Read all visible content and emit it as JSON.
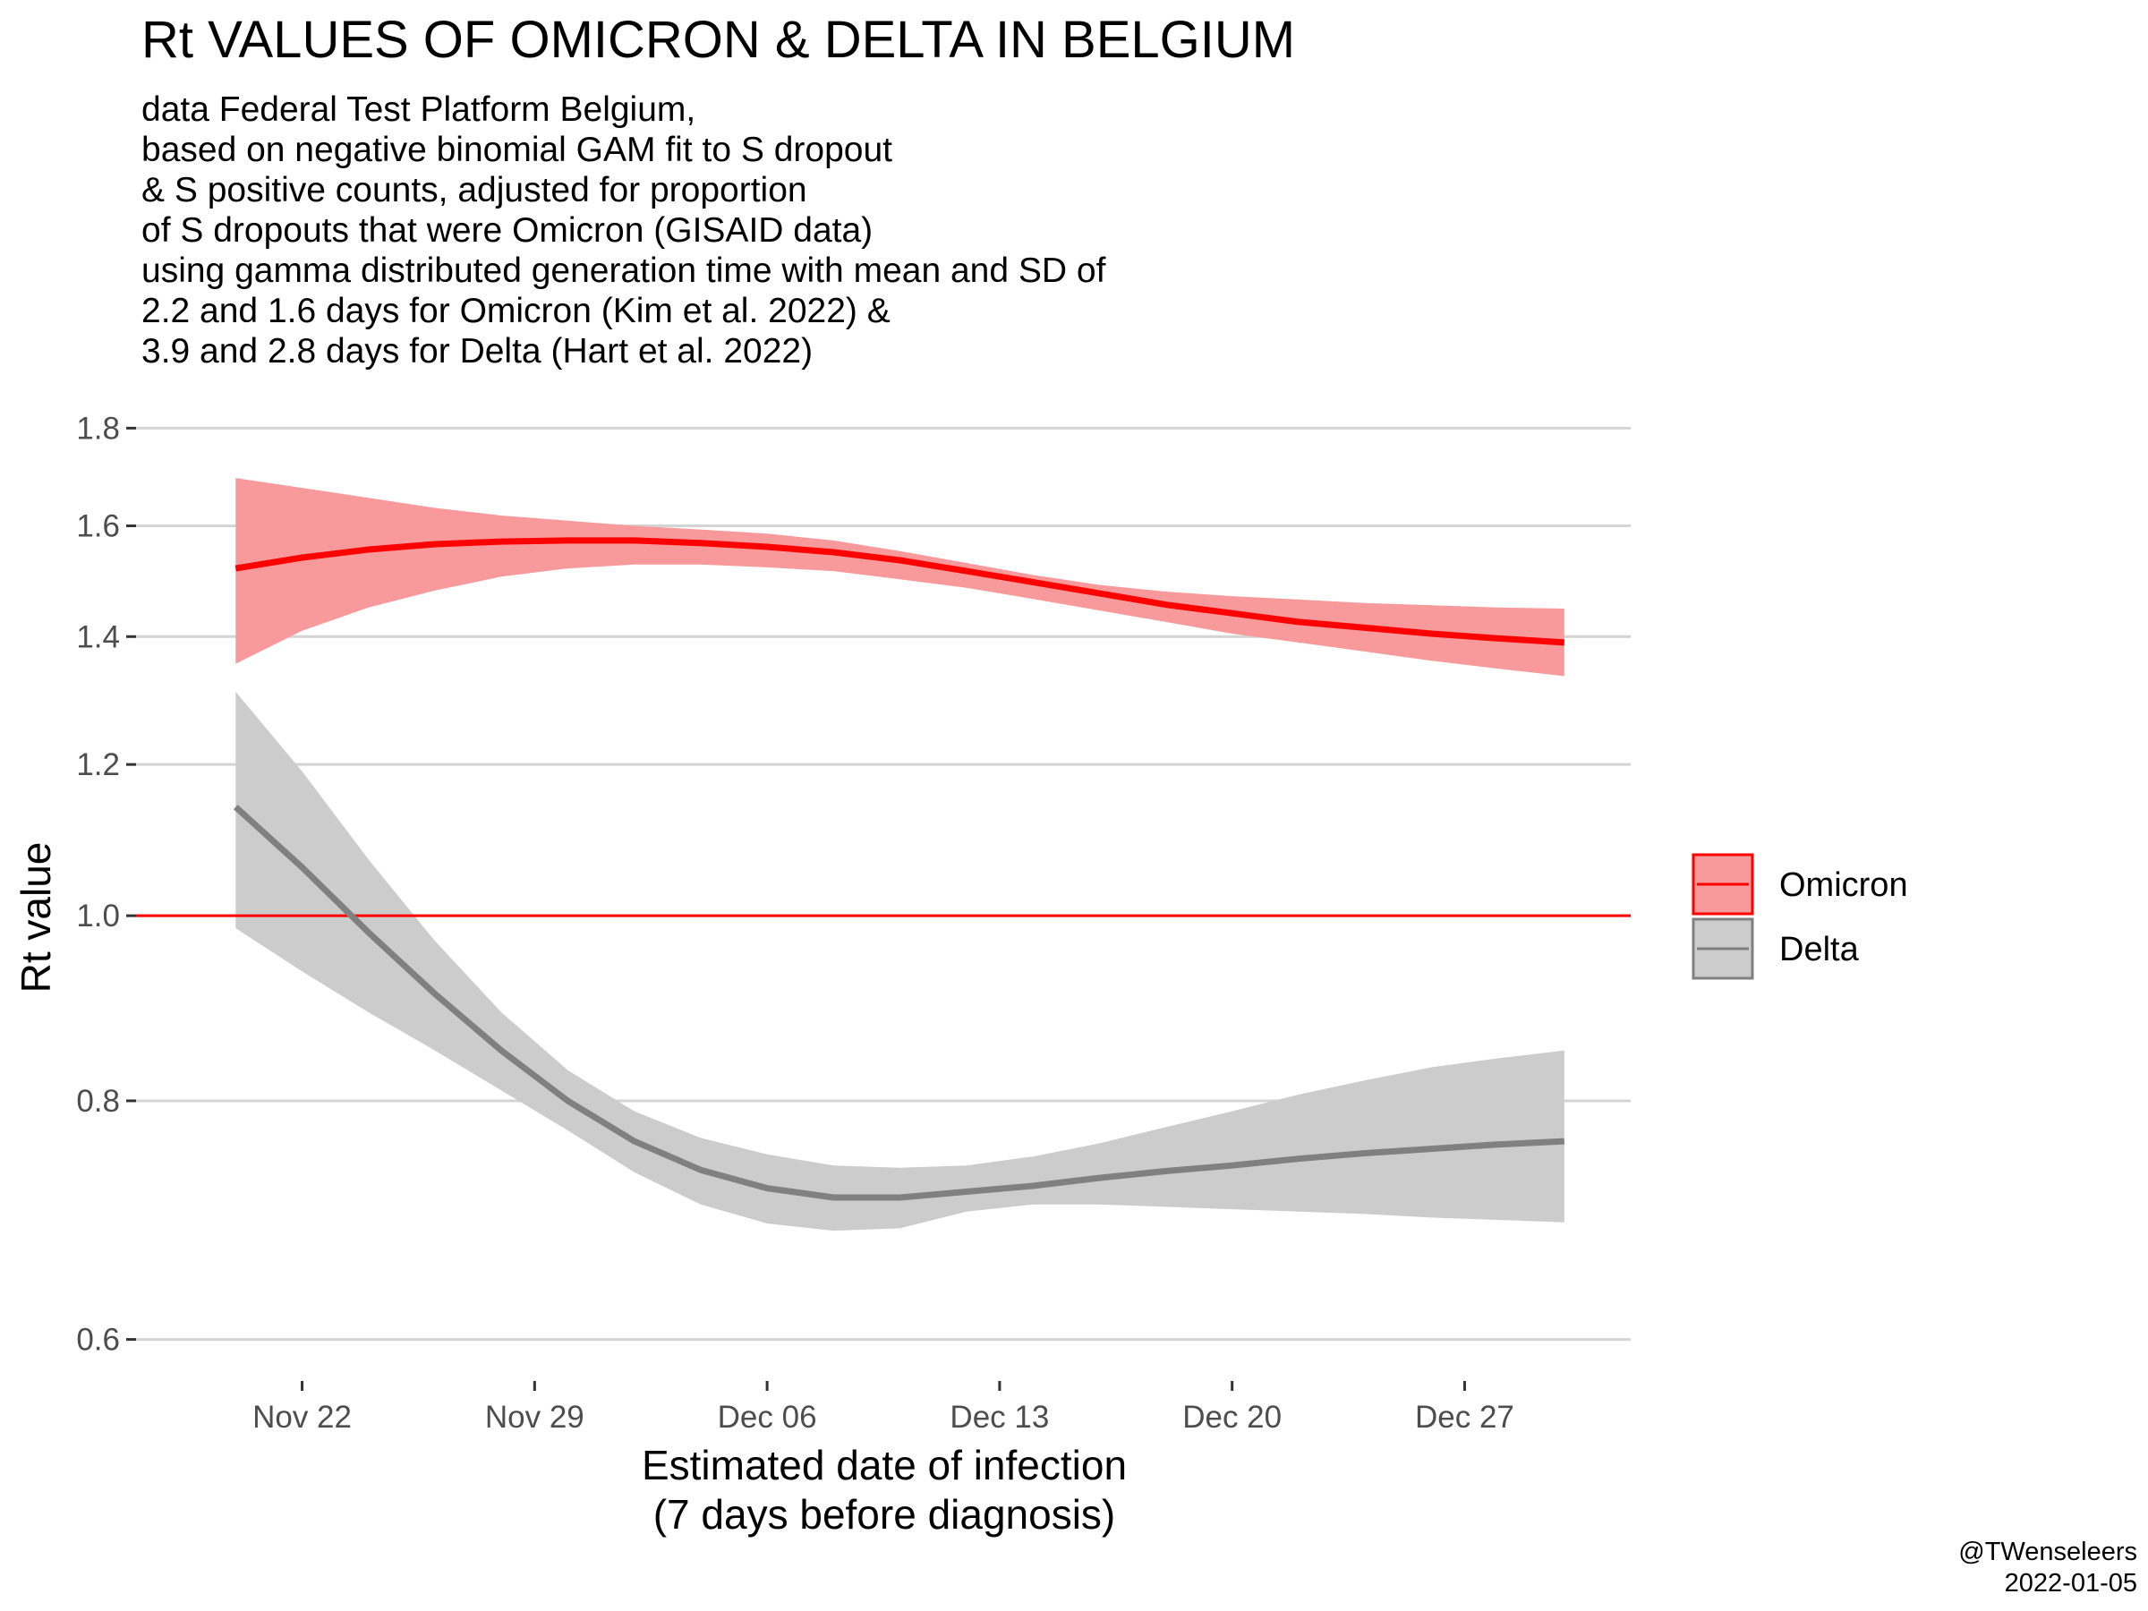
{
  "chart_data": {
    "type": "line",
    "title": "Rt VALUES OF OMICRON & DELTA IN BELGIUM",
    "subtitle_lines": [
      "data Federal Test Platform Belgium,",
      "based on negative binomial GAM fit to S dropout",
      "& S positive counts, adjusted for proportion",
      "of S dropouts that were Omicron (GISAID data)",
      "using gamma distributed generation time with mean and SD of",
      "2.2 and 1.6 days for Omicron (Kim et al. 2022) &",
      "3.9 and 2.8 days for Delta (Hart et al. 2022)"
    ],
    "xlabel_lines": [
      "Estimated date of infection",
      "(7 days before diagnosis)"
    ],
    "ylabel": "Rt value",
    "y_scale": "log",
    "ylim": [
      0.58,
      1.84
    ],
    "xlim": [
      "2021-11-17",
      "2022-01-01"
    ],
    "y_ticks": [
      0.6,
      0.8,
      1.0,
      1.2,
      1.4,
      1.6,
      1.8
    ],
    "y_tick_labels": [
      "0.6",
      "0.8",
      "1.0",
      "1.2",
      "1.4",
      "1.6",
      "1.8"
    ],
    "x_ticks": [
      "2021-11-22",
      "2021-11-29",
      "2021-12-06",
      "2021-12-13",
      "2021-12-20",
      "2021-12-27"
    ],
    "x_tick_labels": [
      "Nov 22",
      "Nov 29",
      "Dec 06",
      "Dec 13",
      "Dec 20",
      "Dec 27"
    ],
    "reference_line": {
      "y": 1.0,
      "color": "#ff0000"
    },
    "grid": "horizontal-major",
    "legend_position": "right",
    "series": [
      {
        "name": "Omicron",
        "line_color": "#ff0000",
        "fill_color": "#f8999b",
        "x": [
          "2021-11-20",
          "2021-11-22",
          "2021-11-24",
          "2021-11-26",
          "2021-11-28",
          "2021-11-30",
          "2021-12-02",
          "2021-12-04",
          "2021-12-06",
          "2021-12-08",
          "2021-12-10",
          "2021-12-12",
          "2021-12-14",
          "2021-12-16",
          "2021-12-18",
          "2021-12-20",
          "2021-12-22",
          "2021-12-24",
          "2021-12-26",
          "2021-12-28",
          "2021-12-30"
        ],
        "y": [
          1.52,
          1.54,
          1.555,
          1.565,
          1.57,
          1.572,
          1.572,
          1.567,
          1.56,
          1.55,
          1.535,
          1.515,
          1.495,
          1.475,
          1.455,
          1.44,
          1.425,
          1.415,
          1.405,
          1.397,
          1.39
        ],
        "lower": [
          1.355,
          1.41,
          1.45,
          1.48,
          1.505,
          1.52,
          1.527,
          1.527,
          1.522,
          1.515,
          1.5,
          1.485,
          1.465,
          1.445,
          1.425,
          1.405,
          1.39,
          1.375,
          1.36,
          1.347,
          1.335
        ],
        "upper": [
          1.695,
          1.675,
          1.655,
          1.635,
          1.62,
          1.61,
          1.6,
          1.593,
          1.585,
          1.572,
          1.552,
          1.53,
          1.508,
          1.49,
          1.478,
          1.47,
          1.464,
          1.458,
          1.454,
          1.45,
          1.448
        ]
      },
      {
        "name": "Delta",
        "line_color": "#808080",
        "fill_color": "#cccccc",
        "x": [
          "2021-11-20",
          "2021-11-22",
          "2021-11-24",
          "2021-11-26",
          "2021-11-28",
          "2021-11-30",
          "2021-12-02",
          "2021-12-04",
          "2021-12-06",
          "2021-12-08",
          "2021-12-10",
          "2021-12-12",
          "2021-12-14",
          "2021-12-16",
          "2021-12-18",
          "2021-12-20",
          "2021-12-22",
          "2021-12-24",
          "2021-12-26",
          "2021-12-28",
          "2021-12-30"
        ],
        "y": [
          1.14,
          1.06,
          0.98,
          0.91,
          0.85,
          0.8,
          0.762,
          0.736,
          0.72,
          0.712,
          0.712,
          0.717,
          0.722,
          0.729,
          0.735,
          0.74,
          0.746,
          0.751,
          0.755,
          0.759,
          0.762
        ],
        "lower": [
          0.985,
          0.935,
          0.89,
          0.85,
          0.81,
          0.772,
          0.734,
          0.706,
          0.69,
          0.684,
          0.686,
          0.7,
          0.706,
          0.706,
          0.704,
          0.702,
          0.7,
          0.698,
          0.695,
          0.693,
          0.691
        ],
        "upper": [
          1.31,
          1.19,
          1.07,
          0.97,
          0.89,
          0.83,
          0.79,
          0.765,
          0.75,
          0.74,
          0.738,
          0.74,
          0.748,
          0.76,
          0.775,
          0.79,
          0.806,
          0.82,
          0.833,
          0.842,
          0.85
        ]
      }
    ],
    "caption_lines": [
      "@TWenseleers",
      "2022-01-05"
    ]
  }
}
